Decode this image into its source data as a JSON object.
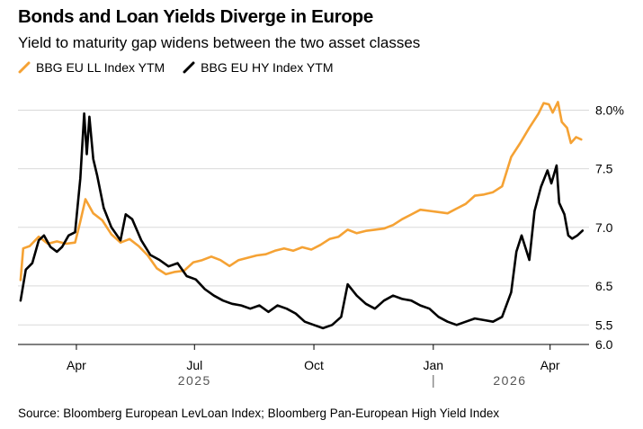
{
  "header": {
    "title": "Bonds and Loan Yields Diverge in Europe",
    "subtitle": "Yield to maturity gap widens between the two asset classes"
  },
  "legend": [
    {
      "label": "BBG EU LL Index YTM",
      "color": "#f5a234"
    },
    {
      "label": "BBG EU HY Index YTM",
      "color": "#000000"
    }
  ],
  "source": "Source: Bloomberg European LevLoan Index; Bloomberg Pan-European High Yield Index",
  "chart_data": {
    "type": "line",
    "x_axis": {
      "type": "date",
      "range": [
        "2025-02-15",
        "2026-05-01"
      ],
      "ticks": [
        {
          "date": "2025-04-01",
          "label": "Apr"
        },
        {
          "date": "2025-07-01",
          "label": "Jul"
        },
        {
          "date": "2025-10-01",
          "label": "Oct"
        },
        {
          "date": "2026-01-01",
          "label": "Jan"
        },
        {
          "date": "2026-04-01",
          "label": "Apr"
        }
      ],
      "year_labels": [
        {
          "date": "2025-07-01",
          "label": "2025"
        },
        {
          "date": "2026-03-01",
          "label": "2026"
        }
      ],
      "year_separator": "2026-01-01"
    },
    "y_axes": [
      {
        "series": "BBG EU LL Index YTM",
        "range": [
          6.0,
          8.25
        ],
        "ticks": [
          {
            "value": 8.0,
            "label": "8.0%"
          },
          {
            "value": 7.5,
            "label": "7.5"
          },
          {
            "value": 7.0,
            "label": "7.0"
          },
          {
            "value": 6.5,
            "label": "6.5"
          },
          {
            "value": 6.0,
            "label": "6.0"
          }
        ]
      },
      {
        "series": "BBG EU HY Index YTM",
        "range": [
          5.38,
          7.0
        ],
        "ticks": [
          {
            "value": 5.5,
            "label": "5.5"
          }
        ]
      }
    ],
    "gridlines": true,
    "series": [
      {
        "name": "BBG EU LL Index YTM",
        "color": "#f5a234",
        "points": [
          [
            "2025-02-17",
            6.55
          ],
          [
            "2025-02-19",
            6.82
          ],
          [
            "2025-02-24",
            6.84
          ],
          [
            "2025-03-03",
            6.92
          ],
          [
            "2025-03-10",
            6.86
          ],
          [
            "2025-03-17",
            6.88
          ],
          [
            "2025-03-24",
            6.86
          ],
          [
            "2025-03-31",
            6.87
          ],
          [
            "2025-04-04",
            7.05
          ],
          [
            "2025-04-08",
            7.24
          ],
          [
            "2025-04-14",
            7.12
          ],
          [
            "2025-04-21",
            7.06
          ],
          [
            "2025-04-28",
            6.94
          ],
          [
            "2025-05-05",
            6.87
          ],
          [
            "2025-05-12",
            6.9
          ],
          [
            "2025-05-19",
            6.84
          ],
          [
            "2025-05-26",
            6.76
          ],
          [
            "2025-06-02",
            6.65
          ],
          [
            "2025-06-09",
            6.6
          ],
          [
            "2025-06-16",
            6.62
          ],
          [
            "2025-06-23",
            6.63
          ],
          [
            "2025-06-30",
            6.7
          ],
          [
            "2025-07-07",
            6.72
          ],
          [
            "2025-07-14",
            6.75
          ],
          [
            "2025-07-21",
            6.72
          ],
          [
            "2025-07-28",
            6.67
          ],
          [
            "2025-08-04",
            6.72
          ],
          [
            "2025-08-11",
            6.74
          ],
          [
            "2025-08-18",
            6.76
          ],
          [
            "2025-08-25",
            6.77
          ],
          [
            "2025-09-01",
            6.8
          ],
          [
            "2025-09-08",
            6.82
          ],
          [
            "2025-09-15",
            6.8
          ],
          [
            "2025-09-22",
            6.83
          ],
          [
            "2025-09-29",
            6.81
          ],
          [
            "2025-10-06",
            6.85
          ],
          [
            "2025-10-13",
            6.9
          ],
          [
            "2025-10-20",
            6.92
          ],
          [
            "2025-10-27",
            6.98
          ],
          [
            "2025-11-03",
            6.95
          ],
          [
            "2025-11-10",
            6.97
          ],
          [
            "2025-11-17",
            6.98
          ],
          [
            "2025-11-24",
            6.99
          ],
          [
            "2025-12-01",
            7.02
          ],
          [
            "2025-12-08",
            7.07
          ],
          [
            "2025-12-15",
            7.11
          ],
          [
            "2025-12-22",
            7.15
          ],
          [
            "2025-12-29",
            7.14
          ],
          [
            "2026-01-05",
            7.13
          ],
          [
            "2026-01-12",
            7.12
          ],
          [
            "2026-01-19",
            7.16
          ],
          [
            "2026-01-26",
            7.2
          ],
          [
            "2026-02-02",
            7.27
          ],
          [
            "2026-02-09",
            7.28
          ],
          [
            "2026-02-16",
            7.3
          ],
          [
            "2026-02-23",
            7.35
          ],
          [
            "2026-03-02",
            7.6
          ],
          [
            "2026-03-09",
            7.72
          ],
          [
            "2026-03-16",
            7.85
          ],
          [
            "2026-03-23",
            7.97
          ],
          [
            "2026-03-27",
            8.06
          ],
          [
            "2026-03-31",
            8.05
          ],
          [
            "2026-04-03",
            7.98
          ],
          [
            "2026-04-07",
            8.07
          ],
          [
            "2026-04-10",
            7.9
          ],
          [
            "2026-04-14",
            7.85
          ],
          [
            "2026-04-17",
            7.72
          ],
          [
            "2026-04-21",
            7.77
          ],
          [
            "2026-04-25",
            7.75
          ]
        ]
      },
      {
        "name": "BBG EU HY Index YTM",
        "color": "#000000",
        "points": [
          [
            "2025-02-17",
            5.65
          ],
          [
            "2025-02-21",
            5.84
          ],
          [
            "2025-02-26",
            5.88
          ],
          [
            "2025-03-03",
            6.02
          ],
          [
            "2025-03-07",
            6.05
          ],
          [
            "2025-03-12",
            5.98
          ],
          [
            "2025-03-17",
            5.95
          ],
          [
            "2025-03-21",
            5.98
          ],
          [
            "2025-03-26",
            6.05
          ],
          [
            "2025-03-31",
            6.07
          ],
          [
            "2025-04-04",
            6.4
          ],
          [
            "2025-04-07",
            6.8
          ],
          [
            "2025-04-09",
            6.55
          ],
          [
            "2025-04-11",
            6.78
          ],
          [
            "2025-04-14",
            6.52
          ],
          [
            "2025-04-17",
            6.42
          ],
          [
            "2025-04-22",
            6.22
          ],
          [
            "2025-04-28",
            6.1
          ],
          [
            "2025-05-05",
            6.02
          ],
          [
            "2025-05-09",
            6.18
          ],
          [
            "2025-05-14",
            6.15
          ],
          [
            "2025-05-21",
            6.02
          ],
          [
            "2025-05-28",
            5.93
          ],
          [
            "2025-06-04",
            5.9
          ],
          [
            "2025-06-11",
            5.86
          ],
          [
            "2025-06-18",
            5.88
          ],
          [
            "2025-06-25",
            5.8
          ],
          [
            "2025-07-02",
            5.78
          ],
          [
            "2025-07-09",
            5.72
          ],
          [
            "2025-07-16",
            5.68
          ],
          [
            "2025-07-23",
            5.65
          ],
          [
            "2025-07-30",
            5.63
          ],
          [
            "2025-08-06",
            5.62
          ],
          [
            "2025-08-13",
            5.6
          ],
          [
            "2025-08-20",
            5.62
          ],
          [
            "2025-08-27",
            5.58
          ],
          [
            "2025-09-03",
            5.62
          ],
          [
            "2025-09-10",
            5.6
          ],
          [
            "2025-09-17",
            5.57
          ],
          [
            "2025-09-24",
            5.52
          ],
          [
            "2025-10-01",
            5.5
          ],
          [
            "2025-10-08",
            5.48
          ],
          [
            "2025-10-15",
            5.5
          ],
          [
            "2025-10-22",
            5.55
          ],
          [
            "2025-10-27",
            5.75
          ],
          [
            "2025-11-03",
            5.68
          ],
          [
            "2025-11-10",
            5.63
          ],
          [
            "2025-11-17",
            5.6
          ],
          [
            "2025-11-24",
            5.65
          ],
          [
            "2025-12-01",
            5.68
          ],
          [
            "2025-12-08",
            5.66
          ],
          [
            "2025-12-15",
            5.65
          ],
          [
            "2025-12-22",
            5.62
          ],
          [
            "2025-12-29",
            5.6
          ],
          [
            "2026-01-05",
            5.55
          ],
          [
            "2026-01-12",
            5.52
          ],
          [
            "2026-01-19",
            5.5
          ],
          [
            "2026-01-26",
            5.52
          ],
          [
            "2026-02-02",
            5.54
          ],
          [
            "2026-02-09",
            5.53
          ],
          [
            "2026-02-16",
            5.52
          ],
          [
            "2026-02-23",
            5.55
          ],
          [
            "2026-03-02",
            5.7
          ],
          [
            "2026-03-06",
            5.95
          ],
          [
            "2026-03-10",
            6.05
          ],
          [
            "2026-03-16",
            5.9
          ],
          [
            "2026-03-20",
            6.2
          ],
          [
            "2026-03-25",
            6.35
          ],
          [
            "2026-03-30",
            6.45
          ],
          [
            "2026-04-02",
            6.37
          ],
          [
            "2026-04-06",
            6.48
          ],
          [
            "2026-04-08",
            6.25
          ],
          [
            "2026-04-12",
            6.18
          ],
          [
            "2026-04-15",
            6.05
          ],
          [
            "2026-04-18",
            6.03
          ],
          [
            "2026-04-22",
            6.05
          ],
          [
            "2026-04-26",
            6.08
          ]
        ]
      }
    ]
  }
}
